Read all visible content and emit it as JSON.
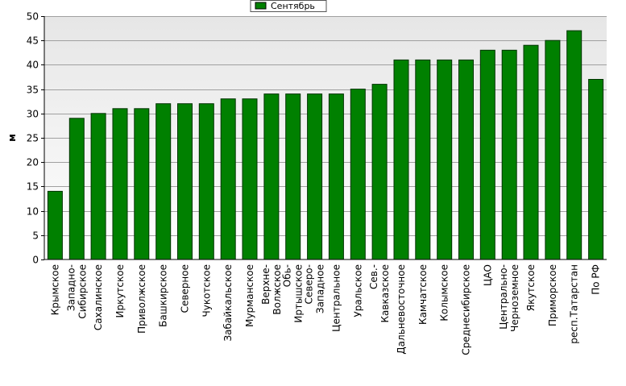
{
  "chart_data": {
    "type": "bar",
    "title": "",
    "xlabel": "",
    "ylabel": "м",
    "ylim": [
      0,
      50
    ],
    "yticks": [
      0,
      5,
      10,
      15,
      20,
      25,
      30,
      35,
      40,
      45,
      50
    ],
    "grid": true,
    "legend_position": "top-center",
    "colors": {
      "bar": "#008000",
      "plot_background_top": "#e6e6e6",
      "plot_background_bottom": "#ffffff"
    },
    "categories": [
      [
        "Крымское"
      ],
      [
        "Западно-",
        "Сибирское"
      ],
      [
        "Сахалинское"
      ],
      [
        "Иркутское"
      ],
      [
        "Приволжское"
      ],
      [
        "Башкирское"
      ],
      [
        "Северное"
      ],
      [
        "Чукотское"
      ],
      [
        "Забайкальское"
      ],
      [
        "Мурманское"
      ],
      [
        "Верхне-",
        "Волжское"
      ],
      [
        "Обь-",
        "Иртышское"
      ],
      [
        "Северо-",
        "Западное"
      ],
      [
        "Центральное"
      ],
      [
        "Уральское"
      ],
      [
        "Сев.-",
        "Кавказское"
      ],
      [
        "Дальневосточное"
      ],
      [
        "Камчатское"
      ],
      [
        "Колымское"
      ],
      [
        "Среднесибирское"
      ],
      [
        "ЦАО"
      ],
      [
        "Центрально-",
        "Черноземное"
      ],
      [
        "Якутское"
      ],
      [
        "Приморское"
      ],
      [
        "респ.Татарстан"
      ],
      [
        "По РФ"
      ]
    ],
    "series": [
      {
        "name": "Сентябрь",
        "values": [
          14,
          29,
          30,
          31,
          31,
          32,
          32,
          32,
          33,
          33,
          34,
          34,
          34,
          34,
          35,
          36,
          41,
          41,
          41,
          41,
          43,
          43,
          44,
          45,
          47,
          37
        ]
      }
    ]
  }
}
